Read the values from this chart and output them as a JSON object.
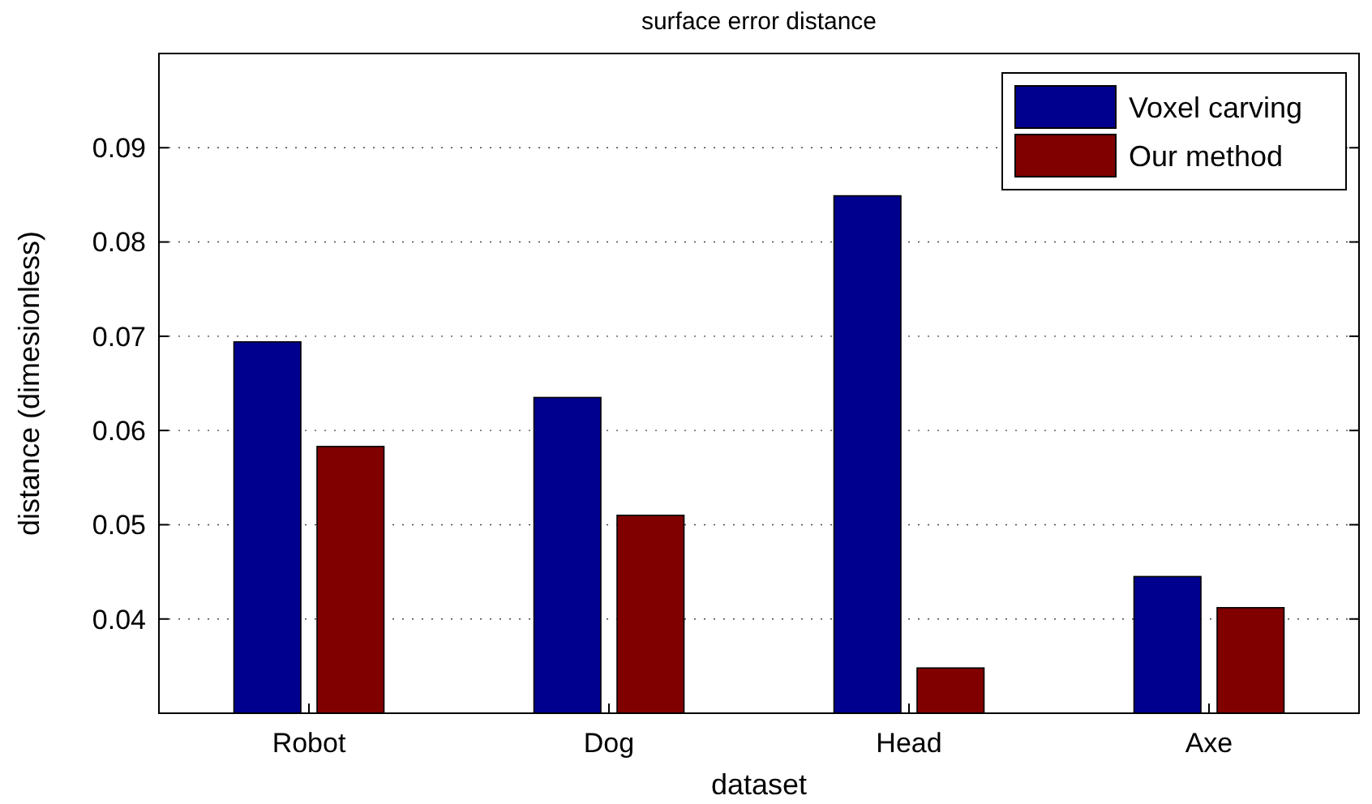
{
  "chart_data": {
    "type": "bar",
    "title": "surface error distance",
    "xlabel": "dataset",
    "ylabel": "distance (dimesionless)",
    "categories": [
      "Robot",
      "Dog",
      "Head",
      "Axe"
    ],
    "series": [
      {
        "name": "Voxel carving",
        "color": "#00008f",
        "values": [
          0.0694,
          0.0635,
          0.0849,
          0.0445
        ]
      },
      {
        "name": "Our method",
        "color": "#800000",
        "values": [
          0.0583,
          0.051,
          0.0348,
          0.0412
        ]
      }
    ],
    "ylim": [
      0.03,
      0.1
    ],
    "yticks": [
      {
        "value": 0.03,
        "label": null
      },
      0.04,
      0.05,
      0.06,
      0.07,
      0.08,
      0.09,
      {
        "value": 0.1,
        "label": null
      }
    ],
    "grid": "y",
    "legend": "top right"
  }
}
